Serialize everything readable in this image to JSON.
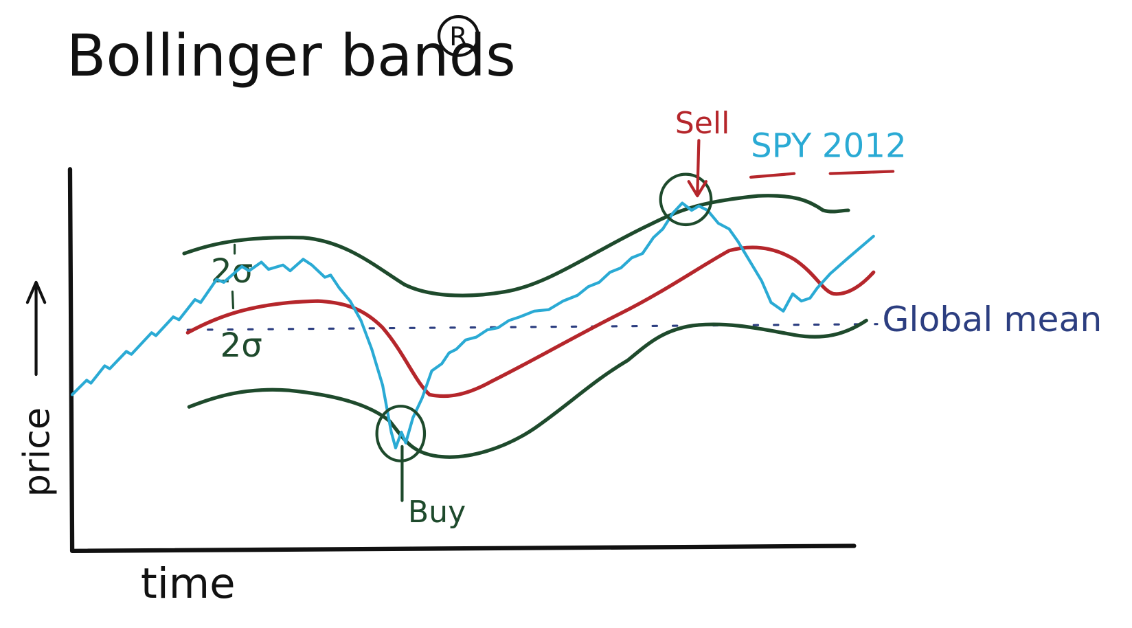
{
  "title": "Bollinger bands",
  "title_mark": "R",
  "annotations": {
    "sell": "Sell",
    "buy": "Buy",
    "series_label": "SPY 2012",
    "global_mean": "Global mean",
    "upper_band": "2σ",
    "lower_band": "2σ"
  },
  "axes": {
    "y": "price",
    "x": "time"
  }
}
